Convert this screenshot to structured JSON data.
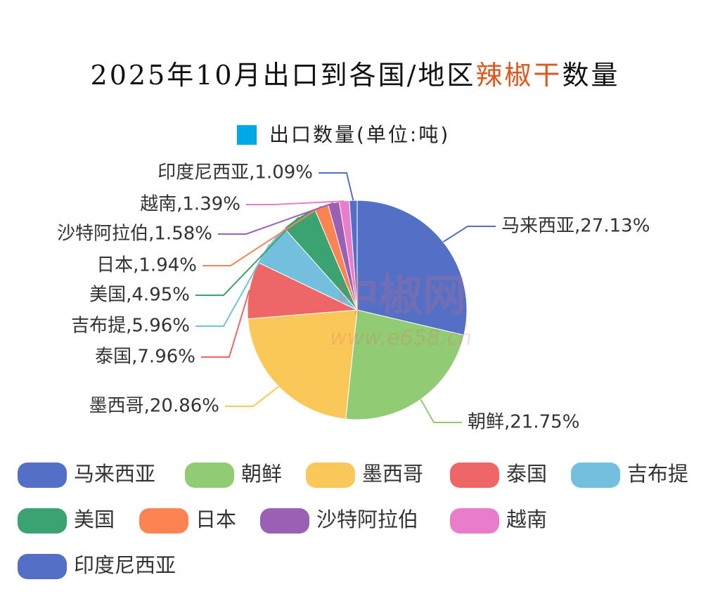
{
  "chart_data": {
    "type": "pie",
    "title": [
      {
        "text": "2025年10月出口到各国/地区",
        "color": "#111111"
      },
      {
        "text": "辣椒干",
        "color": "#e0561c"
      },
      {
        "text": "数量",
        "color": "#111111"
      }
    ],
    "series_name": "出口数量(单位:吨)",
    "series_color": "#00a8e8",
    "categories": [
      "马来西亚",
      "朝鲜",
      "墨西哥",
      "泰国",
      "吉布提",
      "美国",
      "日本",
      "沙特阿拉伯",
      "越南",
      "印度尼西亚"
    ],
    "values": [
      27.13,
      21.75,
      20.86,
      7.96,
      5.96,
      4.95,
      1.94,
      1.58,
      1.39,
      1.09
    ],
    "value_labels": [
      "马来西亚,27.13%",
      "朝鲜,21.75%",
      "墨西哥,20.86%",
      "泰国,7.96%",
      "吉布提,5.96%",
      "美国,4.95%",
      "日本,1.94%",
      "沙特阿拉伯,1.58%",
      "越南,1.39%",
      "印度尼西亚,1.09%"
    ],
    "colors": [
      "#5470c6",
      "#91cc75",
      "#fac858",
      "#ee6666",
      "#73c0de",
      "#3ba272",
      "#fc8452",
      "#9a60b4",
      "#ea7ccc",
      "#5470c6"
    ],
    "watermark": [
      "中椒网",
      "www.e658.cn"
    ]
  }
}
